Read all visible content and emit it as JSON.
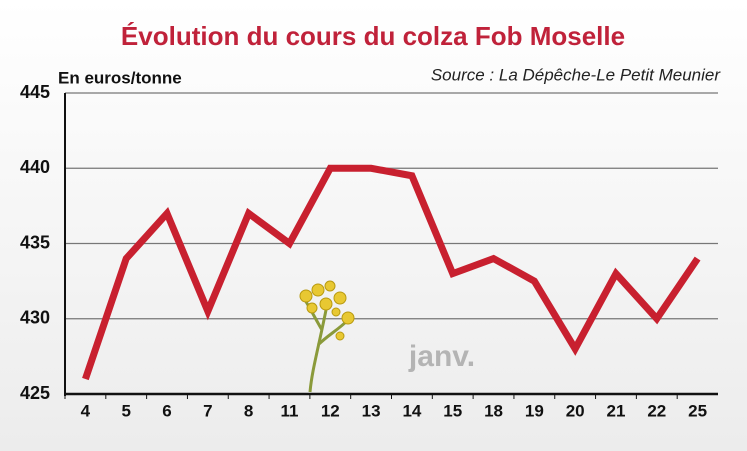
{
  "chart_data": {
    "type": "line",
    "title": "Évolution du cours du colza Fob Moselle",
    "y_label": "En euros/tonne",
    "source": "Source : La Dépêche-Le Petit Meunier",
    "annotation": "janv.",
    "categories": [
      "4",
      "5",
      "6",
      "7",
      "8",
      "11",
      "12",
      "13",
      "14",
      "15",
      "18",
      "19",
      "20",
      "21",
      "22",
      "25"
    ],
    "values": [
      426,
      434,
      437,
      430.5,
      437,
      435,
      440,
      440,
      439.5,
      433,
      434,
      432.5,
      428,
      433,
      430,
      434
    ],
    "color": "#c8202f",
    "ylim": [
      425,
      445
    ],
    "yticks": [
      425,
      430,
      435,
      440,
      445
    ],
    "grid": true
  }
}
